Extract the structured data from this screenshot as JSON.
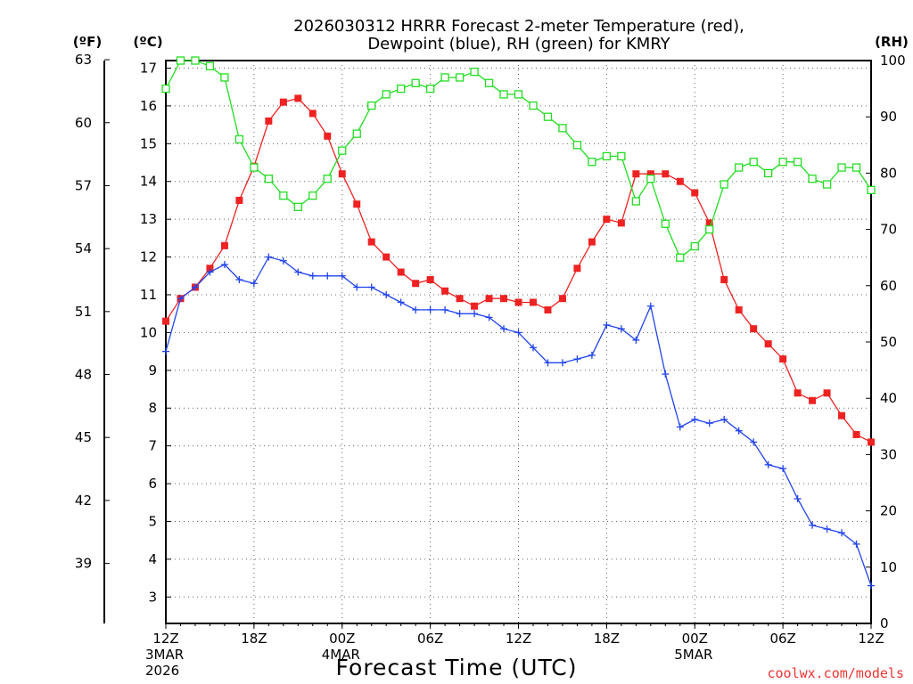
{
  "chart_data": {
    "type": "line",
    "title_line1": "2026030312 HRRR Forecast 2-meter Temperature (red),",
    "title_line2": "Dewpoint (blue), RH (green) for KMRY",
    "xlabel": "Forecast Time (UTC)",
    "credit": "coolwx.com/models",
    "unit_f": "(ºF)",
    "unit_c": "(ºC)",
    "unit_rh": "(RH)",
    "x_hours": [
      0,
      1,
      2,
      3,
      4,
      5,
      6,
      7,
      8,
      9,
      10,
      11,
      12,
      13,
      14,
      15,
      16,
      17,
      18,
      19,
      20,
      21,
      22,
      23,
      24,
      25,
      26,
      27,
      28,
      29,
      30,
      31,
      32,
      33,
      34,
      35,
      36,
      37,
      38,
      39,
      40,
      41,
      42,
      43,
      44,
      45,
      46,
      47,
      48
    ],
    "xlim": [
      0,
      48
    ],
    "ylim_c": [
      2.3,
      17.2
    ],
    "ylim_rh": [
      0,
      100
    ],
    "x_ticks": [
      {
        "hour": 0,
        "label": "12Z",
        "sub1": "3MAR",
        "sub2": "2026"
      },
      {
        "hour": 6,
        "label": "18Z",
        "sub1": "",
        "sub2": ""
      },
      {
        "hour": 12,
        "label": "00Z",
        "sub1": "4MAR",
        "sub2": ""
      },
      {
        "hour": 18,
        "label": "06Z",
        "sub1": "",
        "sub2": ""
      },
      {
        "hour": 24,
        "label": "12Z",
        "sub1": "",
        "sub2": ""
      },
      {
        "hour": 30,
        "label": "18Z",
        "sub1": "",
        "sub2": ""
      },
      {
        "hour": 36,
        "label": "00Z",
        "sub1": "5MAR",
        "sub2": ""
      },
      {
        "hour": 42,
        "label": "06Z",
        "sub1": "",
        "sub2": ""
      },
      {
        "hour": 48,
        "label": "12Z",
        "sub1": "",
        "sub2": ""
      }
    ],
    "y_ticks_c": [
      "3",
      "4",
      "5",
      "6",
      "7",
      "8",
      "9",
      "10",
      "11",
      "12",
      "13",
      "14",
      "15",
      "16",
      "17"
    ],
    "y_ticks_f": [
      "39",
      "42",
      "45",
      "48",
      "51",
      "54",
      "57",
      "60",
      "63"
    ],
    "y_ticks_rh": [
      "0",
      "10",
      "20",
      "30",
      "40",
      "50",
      "60",
      "70",
      "80",
      "90",
      "100"
    ],
    "series": [
      {
        "name": "Temperature",
        "color": "#ee2222",
        "marker": "filled-square",
        "values": [
          10.3,
          10.9,
          11.2,
          11.7,
          12.3,
          13.5,
          14.4,
          15.6,
          16.1,
          16.2,
          15.8,
          15.2,
          14.2,
          13.4,
          12.4,
          12.0,
          11.6,
          11.3,
          11.4,
          11.1,
          10.9,
          10.7,
          10.9,
          10.9,
          10.8,
          10.8,
          10.6,
          10.9,
          11.7,
          12.4,
          13.0,
          12.9,
          14.2,
          14.2,
          14.2,
          14.0,
          13.7,
          12.9,
          11.4,
          10.6,
          10.1,
          9.7,
          9.3,
          8.4,
          8.2,
          8.4,
          7.8,
          7.3,
          7.1
        ]
      },
      {
        "name": "Dewpoint",
        "color": "#2244ee",
        "marker": "plus",
        "values": [
          9.5,
          10.9,
          11.2,
          11.6,
          11.8,
          11.4,
          11.3,
          12.0,
          11.9,
          11.6,
          11.5,
          11.5,
          11.5,
          11.2,
          11.2,
          11.0,
          10.8,
          10.6,
          10.6,
          10.6,
          10.5,
          10.5,
          10.4,
          10.1,
          10.0,
          9.6,
          9.2,
          9.2,
          9.3,
          9.4,
          10.2,
          10.1,
          9.8,
          10.7,
          8.9,
          7.5,
          7.7,
          7.6,
          7.7,
          7.4,
          7.1,
          6.5,
          6.4,
          5.6,
          4.9,
          4.8,
          4.7,
          4.4,
          3.3
        ]
      },
      {
        "name": "RH",
        "color": "#22dd22",
        "marker": "open-square",
        "values": [
          95,
          100,
          100,
          99,
          97,
          86,
          81,
          79,
          76,
          74,
          76,
          79,
          84,
          87,
          92,
          94,
          95,
          96,
          95,
          97,
          97,
          98,
          96,
          94,
          94,
          92,
          90,
          88,
          85,
          82,
          83,
          83,
          75,
          79,
          71,
          65,
          67,
          70,
          78,
          81,
          82,
          80,
          82,
          82,
          79,
          78,
          81,
          81,
          77
        ]
      }
    ]
  }
}
